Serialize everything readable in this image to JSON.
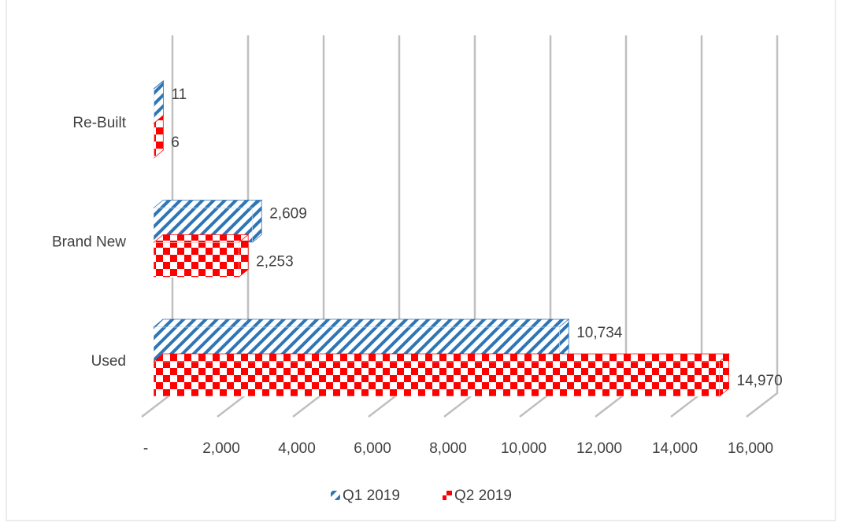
{
  "chart_data": {
    "type": "bar",
    "orientation": "horizontal",
    "three_d": true,
    "categories": [
      "Re-Built",
      "Brand New",
      "Used"
    ],
    "series": [
      {
        "name": "Q1 2019",
        "color": "#2e75b6",
        "pattern": "diagonal-hatch",
        "values": [
          11,
          2609,
          10734
        ],
        "value_labels": [
          "11",
          "2,609",
          "10,734"
        ]
      },
      {
        "name": "Q2 2019",
        "color": "#ff0000",
        "pattern": "checker",
        "values": [
          6,
          2253,
          14970
        ],
        "value_labels": [
          "6",
          "2,253",
          "14,970"
        ]
      }
    ],
    "xlim": [
      0,
      16000
    ],
    "xticks": [
      {
        "value": 0,
        "label": "-"
      },
      {
        "value": 2000,
        "label": "2,000"
      },
      {
        "value": 4000,
        "label": "4,000"
      },
      {
        "value": 6000,
        "label": "6,000"
      },
      {
        "value": 8000,
        "label": "8,000"
      },
      {
        "value": 10000,
        "label": "10,000"
      },
      {
        "value": 12000,
        "label": "12,000"
      },
      {
        "value": 14000,
        "label": "14,000"
      },
      {
        "value": 16000,
        "label": "16,000"
      }
    ],
    "grid": true,
    "legend": "bottom"
  }
}
